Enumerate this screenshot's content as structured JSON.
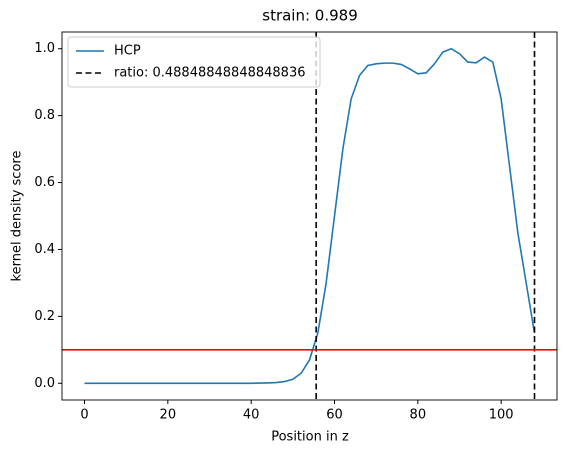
{
  "chart_data": {
    "type": "line",
    "title": "strain: 0.989",
    "x_label": "Position in z",
    "y_label": "kernel density score",
    "x": [
      0,
      10,
      20,
      30,
      40,
      44,
      46,
      48,
      50,
      52,
      54,
      56,
      58,
      60,
      62,
      64,
      66,
      68,
      70,
      72,
      74,
      76,
      78,
      80,
      82,
      84,
      86,
      88,
      90,
      92,
      94,
      96,
      98,
      100,
      102,
      104,
      106,
      108
    ],
    "series": [
      {
        "name": "HCP",
        "color": "#1f77b4",
        "values": [
          0,
          0,
          0,
          0,
          0,
          0.001,
          0.002,
          0.005,
          0.012,
          0.03,
          0.07,
          0.15,
          0.3,
          0.5,
          0.7,
          0.85,
          0.92,
          0.95,
          0.955,
          0.957,
          0.957,
          0.953,
          0.94,
          0.925,
          0.928,
          0.955,
          0.99,
          1.0,
          0.985,
          0.96,
          0.958,
          0.975,
          0.96,
          0.85,
          0.65,
          0.45,
          0.3,
          0.15
        ]
      }
    ],
    "vlines": {
      "name": "ratio: 0.48848848848848836",
      "color": "#000000",
      "values": [
        55.6,
        108
      ]
    },
    "hline": {
      "value": 0.1,
      "color": "#ff0000"
    },
    "xlim": [
      -5.4,
      113.4
    ],
    "xticks": [
      0,
      20,
      40,
      60,
      80,
      100
    ],
    "ylim": [
      -0.05,
      1.05
    ],
    "yticks": [
      {
        "value": 0,
        "label": "0.0"
      },
      0.2,
      0.4,
      0.6,
      0.8,
      {
        "value": 1,
        "label": "1.0"
      }
    ],
    "legend": "upper left"
  }
}
